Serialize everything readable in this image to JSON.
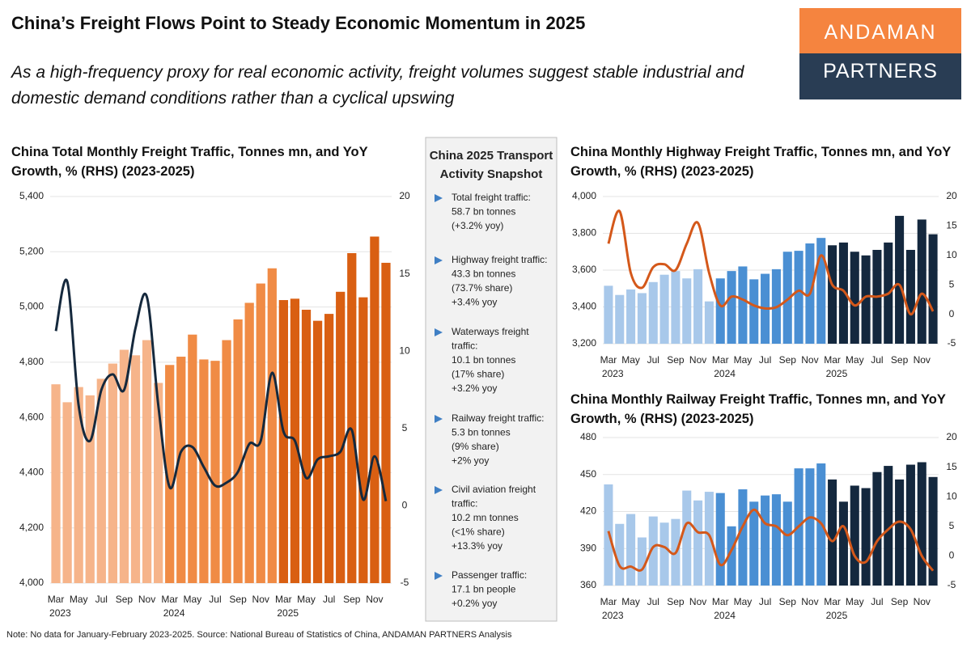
{
  "header": {
    "title": "China’s Freight Flows Point to Steady Economic Momentum in 2025",
    "subtitle": "As a high-frequency proxy for real economic activity, freight volumes suggest stable industrial and domestic demand conditions rather than a cyclical upswing"
  },
  "logo": {
    "top": "ANDAMAN",
    "bottom": "PARTNERS"
  },
  "snapshot": {
    "title": "China 2025 Transport Activity Snapshot",
    "items": [
      [
        "Total freight traffic:",
        "58.7 bn tonnes",
        "(+3.2% yoy)"
      ],
      [
        "Highway freight traffic:",
        "43.3 bn tonnes",
        "(73.7% share)",
        "+3.4% yoy"
      ],
      [
        "Waterways freight",
        "traffic:",
        "10.1 bn tonnes",
        "(17% share)",
        "+3.2% yoy"
      ],
      [
        "Railway freight traffic:",
        "5.3 bn tonnes",
        "(9% share)",
        "+2% yoy"
      ],
      [
        "Civil aviation freight",
        "traffic:",
        "10.2 mn tonnes",
        "(<1% share)",
        "+13.3% yoy"
      ],
      [
        "Passenger traffic:",
        "17.1 bn people",
        "+0.2% yoy"
      ]
    ]
  },
  "note": "Note: No data for January-February 2023-2025. Source: National Bureau of Statistics of China, ANDAMAN PARTNERS Analysis",
  "chart_data": [
    {
      "type": "bar_line",
      "title": "China Total Monthly Freight Traffic, Tonnes mn, and YoY Growth, % (RHS) (2023-2025)",
      "categories": [
        "Mar",
        null,
        "May",
        null,
        "Jul",
        null,
        "Sep",
        null,
        "Nov",
        null,
        "Mar",
        null,
        "May",
        null,
        "Jul",
        null,
        "Sep",
        null,
        "Nov",
        null,
        "Mar",
        null,
        "May",
        null,
        "Jul",
        null,
        "Sep",
        null,
        "Nov",
        null
      ],
      "category_groups": [
        "2023",
        null,
        null,
        null,
        null,
        null,
        null,
        null,
        null,
        null,
        "2024",
        null,
        null,
        null,
        null,
        null,
        null,
        null,
        null,
        null,
        "2025",
        null,
        null,
        null,
        null,
        null,
        null,
        null,
        null,
        null
      ],
      "series": [
        {
          "type": "bar",
          "values": [
            4720,
            4655,
            4710,
            4680,
            4740,
            4795,
            4845,
            4825,
            4880,
            4725,
            4790,
            4820,
            4900,
            4810,
            4805,
            4880,
            4955,
            5015,
            5085,
            5140,
            5025,
            5030,
            4990,
            4950,
            4975,
            5055,
            5195,
            5035,
            5255,
            5160
          ],
          "colors": [
            "#f6b48a",
            "#f6b48a",
            "#f6b48a",
            "#f6b48a",
            "#f6b48a",
            "#f6b48a",
            "#f6b48a",
            "#f6b48a",
            "#f6b48a",
            "#f6b48a",
            "#f08b45",
            "#f08b45",
            "#f08b45",
            "#f08b45",
            "#f08b45",
            "#f08b45",
            "#f08b45",
            "#f08b45",
            "#f08b45",
            "#f08b45",
            "#d95f12",
            "#d95f12",
            "#d95f12",
            "#d95f12",
            "#d95f12",
            "#d95f12",
            "#d95f12",
            "#d95f12",
            "#d95f12",
            "#d95f12"
          ]
        },
        {
          "type": "line",
          "axis": "y2",
          "color": "#15293d",
          "values": [
            11.3,
            14.5,
            6.5,
            4.2,
            7.5,
            8.5,
            7.5,
            11.5,
            13.5,
            6.5,
            1.2,
            3.5,
            3.8,
            2.5,
            1.3,
            1.5,
            2.2,
            4.0,
            4.2,
            8.6,
            4.8,
            4.2,
            1.8,
            3.0,
            3.2,
            3.5,
            4.9,
            0.4,
            3.2,
            0.3
          ]
        }
      ],
      "ylim": [
        4000,
        5400
      ],
      "yticks": [
        {
          "value": 4000,
          "label": "4,000"
        },
        {
          "value": 4200,
          "label": "4,200"
        },
        {
          "value": 4400,
          "label": "4,400"
        },
        {
          "value": 4600,
          "label": "4,600"
        },
        {
          "value": 4800,
          "label": "4,800"
        },
        {
          "value": 5000,
          "label": "5,000"
        },
        {
          "value": 5200,
          "label": "5,200"
        },
        {
          "value": 5400,
          "label": "5,400"
        }
      ],
      "y2lim": [
        -5,
        20
      ],
      "y2ticks": [
        -5,
        0,
        5,
        10,
        15,
        20
      ]
    },
    {
      "type": "bar_line",
      "title": "China Monthly Highway Freight Traffic, Tonnes mn, and YoY Growth, % (RHS) (2023-2025)",
      "categories": [
        "Mar",
        null,
        "May",
        null,
        "Jul",
        null,
        "Sep",
        null,
        "Nov",
        null,
        "Mar",
        null,
        "May",
        null,
        "Jul",
        null,
        "Sep",
        null,
        "Nov",
        null,
        "Mar",
        null,
        "May",
        null,
        "Jul",
        null,
        "Sep",
        null,
        "Nov",
        null
      ],
      "category_groups": [
        "2023",
        null,
        null,
        null,
        null,
        null,
        null,
        null,
        null,
        null,
        "2024",
        null,
        null,
        null,
        null,
        null,
        null,
        null,
        null,
        null,
        "2025",
        null,
        null,
        null,
        null,
        null,
        null,
        null,
        null,
        null
      ],
      "series": [
        {
          "type": "bar",
          "values": [
            3515,
            3465,
            3495,
            3475,
            3535,
            3575,
            3595,
            3555,
            3605,
            3430,
            3555,
            3595,
            3620,
            3550,
            3580,
            3605,
            3700,
            3705,
            3745,
            3775,
            3735,
            3750,
            3700,
            3680,
            3710,
            3750,
            3895,
            3710,
            3875,
            3795
          ],
          "colors": [
            "#a8c8ea",
            "#a8c8ea",
            "#a8c8ea",
            "#a8c8ea",
            "#a8c8ea",
            "#a8c8ea",
            "#a8c8ea",
            "#a8c8ea",
            "#a8c8ea",
            "#a8c8ea",
            "#4a8fd3",
            "#4a8fd3",
            "#4a8fd3",
            "#4a8fd3",
            "#4a8fd3",
            "#4a8fd3",
            "#4a8fd3",
            "#4a8fd3",
            "#4a8fd3",
            "#4a8fd3",
            "#14283e",
            "#14283e",
            "#14283e",
            "#14283e",
            "#14283e",
            "#14283e",
            "#14283e",
            "#14283e",
            "#14283e",
            "#14283e"
          ]
        },
        {
          "type": "line",
          "axis": "y2",
          "color": "#d4581a",
          "values": [
            12,
            17.5,
            7,
            4.5,
            8,
            8.5,
            7.5,
            12,
            15.5,
            7,
            1.5,
            3,
            2.5,
            1.5,
            1,
            1.2,
            2.5,
            4,
            3.5,
            10,
            5,
            4,
            1.5,
            3,
            3,
            3.5,
            5,
            0,
            3.5,
            0.5
          ]
        }
      ],
      "ylim": [
        3200,
        4000
      ],
      "yticks": [
        {
          "value": 3200,
          "label": "3,200"
        },
        {
          "value": 3400,
          "label": "3,400"
        },
        {
          "value": 3600,
          "label": "3,600"
        },
        {
          "value": 3800,
          "label": "3,800"
        },
        {
          "value": 4000,
          "label": "4,000"
        }
      ],
      "y2lim": [
        -5,
        20
      ],
      "y2ticks": [
        -5,
        0,
        5,
        10,
        15,
        20
      ]
    },
    {
      "type": "bar_line",
      "title": "China Monthly Railway Freight Traffic, Tonnes mn, and YoY Growth, % (RHS) (2023-2025)",
      "categories": [
        "Mar",
        null,
        "May",
        null,
        "Jul",
        null,
        "Sep",
        null,
        "Nov",
        null,
        "Mar",
        null,
        "May",
        null,
        "Jul",
        null,
        "Sep",
        null,
        "Nov",
        null,
        "Mar",
        null,
        "May",
        null,
        "Jul",
        null,
        "Sep",
        null,
        "Nov",
        null
      ],
      "category_groups": [
        "2023",
        null,
        null,
        null,
        null,
        null,
        null,
        null,
        null,
        null,
        "2024",
        null,
        null,
        null,
        null,
        null,
        null,
        null,
        null,
        null,
        "2025",
        null,
        null,
        null,
        null,
        null,
        null,
        null,
        null,
        null
      ],
      "series": [
        {
          "type": "bar",
          "values": [
            442,
            410,
            418,
            399,
            416,
            411,
            414,
            437,
            429,
            436,
            435,
            408,
            438,
            428,
            433,
            434,
            428,
            455,
            455,
            459,
            446,
            428,
            441,
            439,
            452,
            457,
            446,
            458,
            460,
            448
          ],
          "colors": [
            "#a8c8ea",
            "#a8c8ea",
            "#a8c8ea",
            "#a8c8ea",
            "#a8c8ea",
            "#a8c8ea",
            "#a8c8ea",
            "#a8c8ea",
            "#a8c8ea",
            "#a8c8ea",
            "#4a8fd3",
            "#4a8fd3",
            "#4a8fd3",
            "#4a8fd3",
            "#4a8fd3",
            "#4a8fd3",
            "#4a8fd3",
            "#4a8fd3",
            "#4a8fd3",
            "#4a8fd3",
            "#14283e",
            "#14283e",
            "#14283e",
            "#14283e",
            "#14283e",
            "#14283e",
            "#14283e",
            "#14283e",
            "#14283e",
            "#14283e"
          ]
        },
        {
          "type": "line",
          "axis": "y2",
          "color": "#d4581a",
          "values": [
            4.2,
            -1.7,
            -1.8,
            -2.3,
            1.5,
            1.5,
            0.5,
            5.5,
            4,
            3.5,
            -1.5,
            1,
            5,
            7.8,
            5.5,
            5,
            3.5,
            5,
            6.5,
            5.5,
            2.5,
            5,
            0,
            -1,
            2.5,
            4.5,
            5.8,
            4.5,
            0,
            -2.5
          ]
        }
      ],
      "ylim": [
        360,
        480
      ],
      "yticks": [
        360,
        390,
        420,
        450,
        480
      ],
      "y2lim": [
        -5,
        20
      ],
      "y2ticks": [
        -5,
        0,
        5,
        10,
        15,
        20
      ]
    }
  ]
}
